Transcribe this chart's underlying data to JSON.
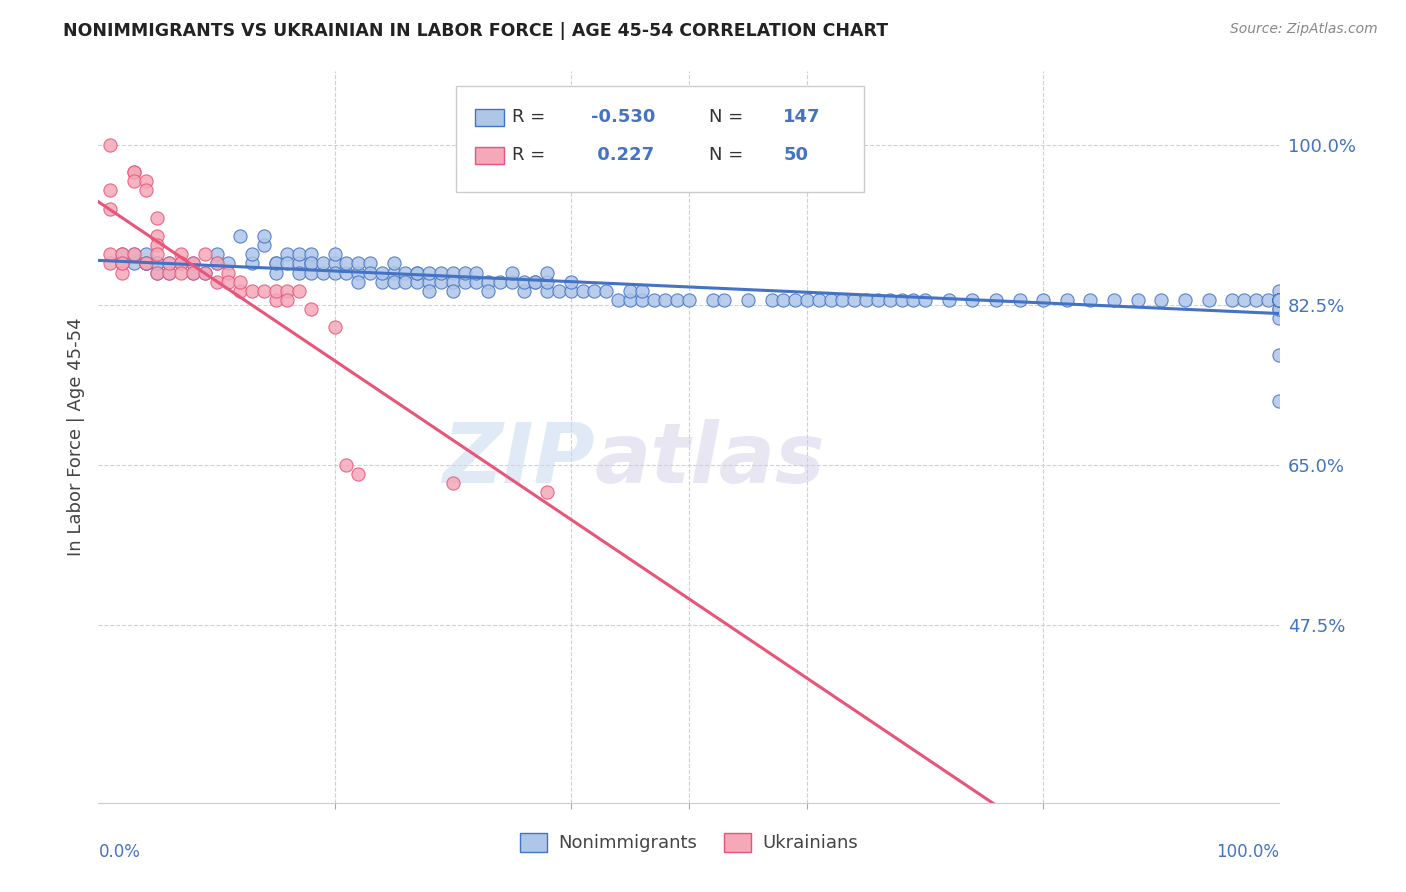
{
  "title": "NONIMMIGRANTS VS UKRAINIAN IN LABOR FORCE | AGE 45-54 CORRELATION CHART",
  "source": "Source: ZipAtlas.com",
  "ylabel": "In Labor Force | Age 45-54",
  "ytick_labels": [
    "100.0%",
    "82.5%",
    "65.0%",
    "47.5%"
  ],
  "ytick_values": [
    1.0,
    0.825,
    0.65,
    0.475
  ],
  "xlim": [
    0.0,
    1.0
  ],
  "ylim": [
    0.28,
    1.08
  ],
  "nonimmigrant_R": -0.53,
  "nonimmigrant_N": 147,
  "ukrainian_R": 0.227,
  "ukrainian_N": 50,
  "nonimmigrant_color": "#aec6e8",
  "ukrainian_color": "#f4a8b8",
  "nonimmigrant_line_color": "#4472c4",
  "ukrainian_line_color": "#e8547a",
  "legend_label_nonimmigrant": "Nonimmigrants",
  "legend_label_ukrainian": "Ukrainians",
  "watermark_zip": "ZIP",
  "watermark_atlas": "atlas",
  "background_color": "#ffffff",
  "grid_color": "#d0d0d0",
  "title_color": "#222222",
  "axis_label_color": "#4472c4",
  "nonimmigrant_x": [
    0.02,
    0.03,
    0.03,
    0.04,
    0.04,
    0.04,
    0.04,
    0.05,
    0.05,
    0.05,
    0.05,
    0.06,
    0.06,
    0.07,
    0.08,
    0.08,
    0.09,
    0.1,
    0.1,
    0.11,
    0.12,
    0.13,
    0.13,
    0.14,
    0.14,
    0.15,
    0.15,
    0.15,
    0.16,
    0.16,
    0.17,
    0.17,
    0.17,
    0.18,
    0.18,
    0.18,
    0.18,
    0.19,
    0.19,
    0.2,
    0.2,
    0.2,
    0.21,
    0.21,
    0.22,
    0.22,
    0.22,
    0.23,
    0.23,
    0.24,
    0.24,
    0.25,
    0.25,
    0.25,
    0.26,
    0.26,
    0.27,
    0.27,
    0.27,
    0.28,
    0.28,
    0.28,
    0.29,
    0.29,
    0.3,
    0.3,
    0.3,
    0.31,
    0.31,
    0.32,
    0.32,
    0.33,
    0.33,
    0.34,
    0.35,
    0.35,
    0.36,
    0.36,
    0.37,
    0.37,
    0.38,
    0.38,
    0.38,
    0.39,
    0.4,
    0.4,
    0.41,
    0.42,
    0.43,
    0.44,
    0.45,
    0.45,
    0.46,
    0.46,
    0.47,
    0.48,
    0.49,
    0.5,
    0.52,
    0.53,
    0.55,
    0.57,
    0.58,
    0.59,
    0.6,
    0.61,
    0.62,
    0.63,
    0.64,
    0.65,
    0.66,
    0.67,
    0.68,
    0.69,
    0.7,
    0.72,
    0.74,
    0.76,
    0.78,
    0.8,
    0.82,
    0.84,
    0.86,
    0.88,
    0.9,
    0.92,
    0.94,
    0.96,
    0.97,
    0.98,
    0.99,
    1.0,
    1.0,
    1.0,
    1.0,
    1.0,
    1.0,
    1.0,
    1.0,
    1.0,
    1.0,
    1.0,
    1.0,
    1.0,
    1.0,
    1.0,
    1.0
  ],
  "nonimmigrant_y": [
    0.88,
    0.87,
    0.88,
    0.87,
    0.87,
    0.88,
    0.87,
    0.87,
    0.87,
    0.86,
    0.87,
    0.87,
    0.86,
    0.87,
    0.86,
    0.87,
    0.86,
    0.87,
    0.88,
    0.87,
    0.9,
    0.87,
    0.88,
    0.89,
    0.9,
    0.87,
    0.86,
    0.87,
    0.88,
    0.87,
    0.87,
    0.88,
    0.86,
    0.86,
    0.87,
    0.88,
    0.87,
    0.86,
    0.87,
    0.87,
    0.88,
    0.86,
    0.86,
    0.87,
    0.86,
    0.85,
    0.87,
    0.87,
    0.86,
    0.85,
    0.86,
    0.86,
    0.85,
    0.87,
    0.86,
    0.85,
    0.85,
    0.86,
    0.86,
    0.85,
    0.86,
    0.84,
    0.85,
    0.86,
    0.86,
    0.85,
    0.84,
    0.85,
    0.86,
    0.85,
    0.86,
    0.85,
    0.84,
    0.85,
    0.85,
    0.86,
    0.84,
    0.85,
    0.85,
    0.85,
    0.84,
    0.85,
    0.86,
    0.84,
    0.84,
    0.85,
    0.84,
    0.84,
    0.84,
    0.83,
    0.83,
    0.84,
    0.83,
    0.84,
    0.83,
    0.83,
    0.83,
    0.83,
    0.83,
    0.83,
    0.83,
    0.83,
    0.83,
    0.83,
    0.83,
    0.83,
    0.83,
    0.83,
    0.83,
    0.83,
    0.83,
    0.83,
    0.83,
    0.83,
    0.83,
    0.83,
    0.83,
    0.83,
    0.83,
    0.83,
    0.83,
    0.83,
    0.83,
    0.83,
    0.83,
    0.83,
    0.83,
    0.83,
    0.83,
    0.83,
    0.83,
    0.83,
    0.84,
    0.83,
    0.83,
    0.82,
    0.83,
    0.81,
    0.82,
    0.83,
    0.83,
    0.83,
    0.83,
    0.83,
    0.83,
    0.77,
    0.72
  ],
  "ukrainian_x": [
    0.01,
    0.01,
    0.01,
    0.01,
    0.01,
    0.02,
    0.02,
    0.02,
    0.02,
    0.02,
    0.03,
    0.03,
    0.03,
    0.03,
    0.04,
    0.04,
    0.04,
    0.05,
    0.05,
    0.05,
    0.05,
    0.05,
    0.06,
    0.06,
    0.07,
    0.07,
    0.07,
    0.08,
    0.08,
    0.09,
    0.09,
    0.1,
    0.1,
    0.11,
    0.11,
    0.12,
    0.12,
    0.13,
    0.14,
    0.15,
    0.15,
    0.16,
    0.16,
    0.17,
    0.18,
    0.2,
    0.21,
    0.22,
    0.3,
    0.38
  ],
  "ukrainian_y": [
    0.87,
    0.88,
    1.0,
    0.95,
    0.93,
    0.87,
    0.87,
    0.86,
    0.88,
    0.87,
    0.97,
    0.97,
    0.96,
    0.88,
    0.96,
    0.95,
    0.87,
    0.92,
    0.9,
    0.89,
    0.88,
    0.86,
    0.86,
    0.87,
    0.88,
    0.87,
    0.86,
    0.87,
    0.86,
    0.86,
    0.88,
    0.85,
    0.87,
    0.86,
    0.85,
    0.84,
    0.85,
    0.84,
    0.84,
    0.83,
    0.84,
    0.84,
    0.83,
    0.84,
    0.82,
    0.8,
    0.65,
    0.64,
    0.63,
    0.62
  ]
}
